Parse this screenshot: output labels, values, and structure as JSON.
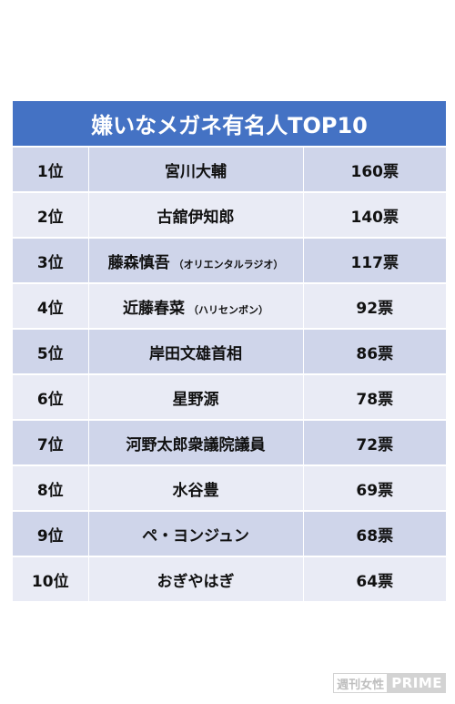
{
  "table": {
    "title": "嫌いなメガネ有名人TOP10",
    "rows": [
      {
        "rank": "1位",
        "name": "宮川大輔",
        "note": "",
        "votes": "160票"
      },
      {
        "rank": "2位",
        "name": "古舘伊知郎",
        "note": "",
        "votes": "140票"
      },
      {
        "rank": "3位",
        "name": "藤森慎吾",
        "note": "（オリエンタルラジオ）",
        "votes": "117票"
      },
      {
        "rank": "4位",
        "name": "近藤春菜",
        "note": "（ハリセンボン）",
        "votes": "92票"
      },
      {
        "rank": "5位",
        "name": "岸田文雄首相",
        "note": "",
        "votes": "86票"
      },
      {
        "rank": "6位",
        "name": "星野源",
        "note": "",
        "votes": "78票"
      },
      {
        "rank": "7位",
        "name": "河野太郎衆議院議員",
        "note": "",
        "votes": "72票"
      },
      {
        "rank": "8位",
        "name": "水谷豊",
        "note": "",
        "votes": "69票"
      },
      {
        "rank": "9位",
        "name": "ペ・ヨンジュン",
        "note": "",
        "votes": "68票"
      },
      {
        "rank": "10位",
        "name": "おぎやはぎ",
        "note": "",
        "votes": "64票"
      }
    ]
  },
  "watermark": {
    "left": "週刊女性",
    "right": "PRIME"
  },
  "colors": {
    "header": "#4472c4",
    "row_odd": "#cfd5ea",
    "row_even": "#e9ebf5"
  }
}
